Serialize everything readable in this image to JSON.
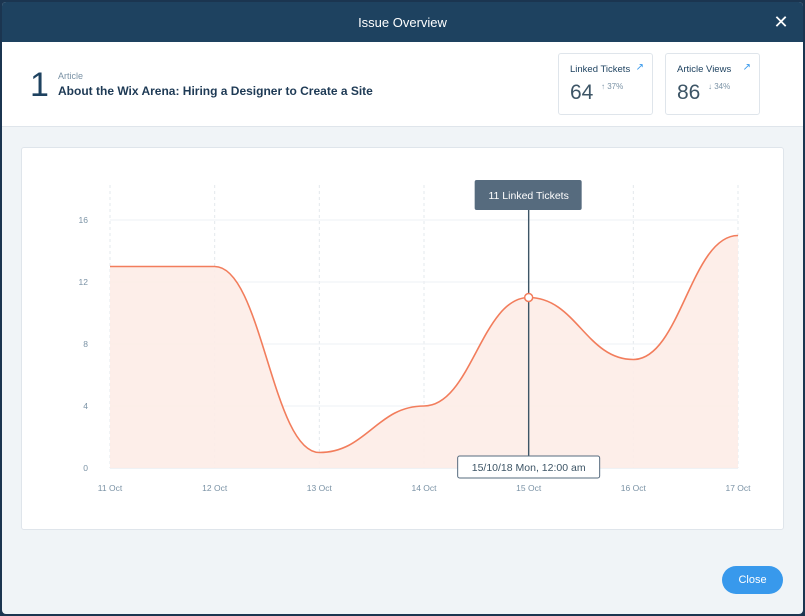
{
  "modal": {
    "title": "Issue Overview",
    "close_icon": "close-icon"
  },
  "issue": {
    "number": "1",
    "type_label": "Article",
    "title": "About the Wix Arena: Hiring a Designer to Create a Site"
  },
  "stats": [
    {
      "label": "Linked Tickets",
      "value": "64",
      "change": "↑ 37%",
      "icon": "external-link-icon"
    },
    {
      "label": "Article Views",
      "value": "86",
      "change": "↓ 34%",
      "icon": "external-link-icon"
    }
  ],
  "colors": {
    "line": "#f27d5c",
    "area": "#fdece7",
    "tooltip_bg": "#566b7e",
    "accent": "#3899ec"
  },
  "chart_data": {
    "type": "area",
    "x": [
      "11 Oct",
      "12 Oct",
      "13 Oct",
      "14 Oct",
      "15 Oct",
      "16 Oct",
      "17 Oct"
    ],
    "series": [
      {
        "values": [
          13,
          13,
          1,
          4,
          11,
          7,
          15
        ]
      }
    ],
    "yticks": [
      0,
      4,
      8,
      12,
      16
    ],
    "ylim": [
      0,
      18
    ],
    "grid": true,
    "highlight": {
      "x": "15 Oct",
      "value": 11,
      "tooltip": "11 Linked Tickets",
      "date_label": "15/10/18 Mon, 12:00 am"
    }
  },
  "footer": {
    "close_label": "Close"
  }
}
